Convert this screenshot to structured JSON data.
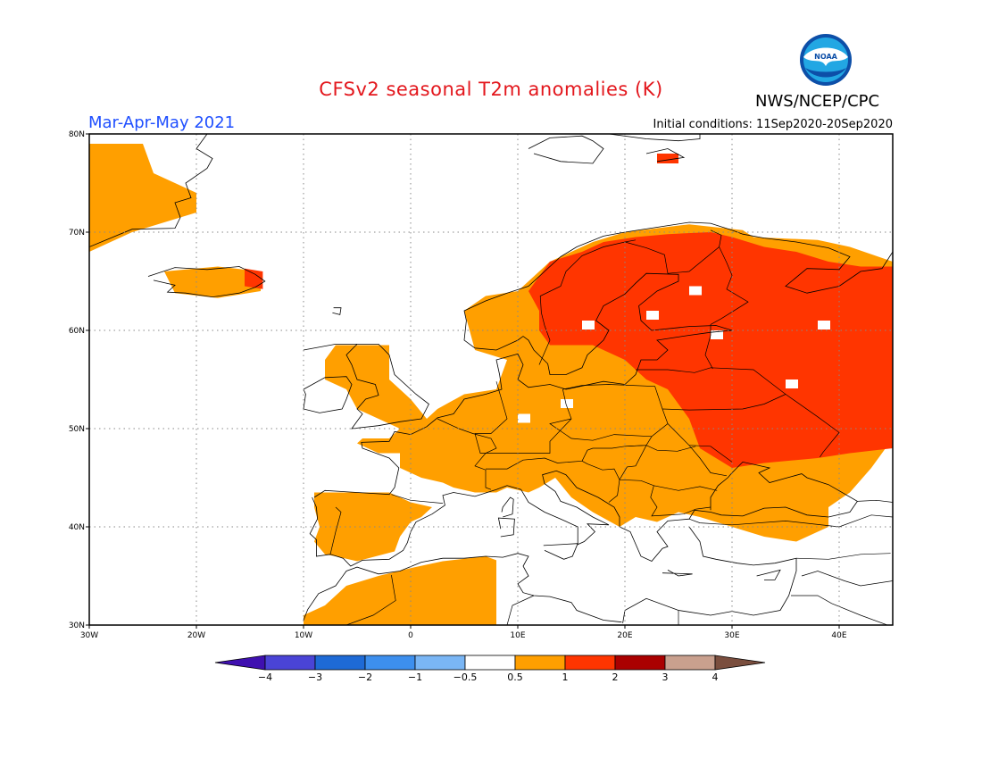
{
  "title": "CFSv2 seasonal T2m anomalies (K)",
  "season": "Mar-Apr-May 2021",
  "agency": "NWS/NCEP/CPC",
  "logo_text": "NOAA",
  "initial_conditions": "Initial conditions: 11Sep2020-20Sep2020",
  "map": {
    "lon_range": [
      -30,
      45
    ],
    "lat_range": [
      30,
      80
    ],
    "lat_ticks": [
      {
        "value": 80,
        "label": "80N"
      },
      {
        "value": 70,
        "label": "70N"
      },
      {
        "value": 60,
        "label": "60N"
      },
      {
        "value": 50,
        "label": "50N"
      },
      {
        "value": 40,
        "label": "40N"
      },
      {
        "value": 30,
        "label": "30N"
      }
    ],
    "lon_ticks": [
      {
        "value": -30,
        "label": "30W"
      },
      {
        "value": -20,
        "label": "20W"
      },
      {
        "value": -10,
        "label": "10W"
      },
      {
        "value": 0,
        "label": "0"
      },
      {
        "value": 10,
        "label": "10E"
      },
      {
        "value": 20,
        "label": "20E"
      },
      {
        "value": 30,
        "label": "30E"
      },
      {
        "value": 40,
        "label": "40E"
      }
    ],
    "grid": true,
    "anomaly_regions": [
      {
        "level": "0.5-1",
        "color": "#ff9f00",
        "polygon": [
          [
            -30,
            79
          ],
          [
            -25,
            79
          ],
          [
            -24,
            76
          ],
          [
            -20,
            74
          ],
          [
            -20,
            72
          ],
          [
            -26,
            70
          ],
          [
            -30,
            68
          ]
        ]
      },
      {
        "level": "0.5-1",
        "color": "#ff9f00",
        "polygon": [
          [
            -23,
            66
          ],
          [
            -18,
            66.5
          ],
          [
            -14,
            66
          ],
          [
            -14,
            64
          ],
          [
            -18,
            63.3
          ],
          [
            -22,
            63.8
          ]
        ]
      },
      {
        "level": "1-2",
        "color": "#ff3500",
        "polygon": [
          [
            -15.5,
            66.3
          ],
          [
            -13.8,
            66
          ],
          [
            -13.8,
            64.2
          ],
          [
            -15.5,
            64.5
          ]
        ]
      },
      {
        "level": "0.5-1",
        "color": "#ff9f00",
        "polygon": [
          [
            -7,
            58.5
          ],
          [
            -2,
            58.5
          ],
          [
            -2,
            55
          ],
          [
            0,
            53
          ],
          [
            1.5,
            51
          ],
          [
            2.5,
            52
          ],
          [
            5,
            53.5
          ],
          [
            8,
            54
          ],
          [
            9,
            57
          ],
          [
            6,
            58
          ],
          [
            5,
            62
          ],
          [
            7,
            63.5
          ],
          [
            10,
            64
          ],
          [
            13,
            67
          ],
          [
            17,
            69
          ],
          [
            20,
            70
          ],
          [
            26,
            70.8
          ],
          [
            31,
            70.2
          ],
          [
            32,
            69.5
          ],
          [
            38,
            69.2
          ],
          [
            41,
            68.5
          ],
          [
            45,
            67
          ],
          [
            45,
            49
          ],
          [
            43,
            46
          ],
          [
            41,
            43.5
          ],
          [
            39,
            42
          ],
          [
            39,
            40
          ],
          [
            36,
            38.5
          ],
          [
            33,
            39
          ],
          [
            30,
            40
          ],
          [
            27,
            41
          ],
          [
            25,
            41.5
          ],
          [
            23,
            40.5
          ],
          [
            21,
            41
          ],
          [
            19.5,
            40
          ],
          [
            17,
            41.5
          ],
          [
            15,
            43
          ],
          [
            13.5,
            45
          ],
          [
            12,
            44
          ],
          [
            11,
            43.5
          ],
          [
            9,
            44
          ],
          [
            8,
            43.5
          ],
          [
            6,
            43.5
          ],
          [
            4,
            44
          ],
          [
            3,
            44.5
          ],
          [
            1,
            45
          ],
          [
            -1,
            46
          ],
          [
            -1,
            47.5
          ],
          [
            -3,
            47.5
          ],
          [
            -5,
            48.5
          ],
          [
            -4.5,
            49
          ],
          [
            -2,
            49
          ],
          [
            -1,
            50
          ],
          [
            -3,
            51
          ],
          [
            -5,
            52
          ],
          [
            -6,
            54
          ],
          [
            -8,
            55
          ],
          [
            -8,
            57
          ]
        ]
      },
      {
        "level": "0.5-1",
        "color": "#ff9f00",
        "polygon": [
          [
            -9,
            43.5
          ],
          [
            -6,
            43.5
          ],
          [
            -2,
            43.5
          ],
          [
            0,
            42.5
          ],
          [
            2,
            42
          ],
          [
            1,
            41
          ],
          [
            0,
            40.5
          ],
          [
            -1,
            39
          ],
          [
            -1.5,
            37.5
          ],
          [
            -5,
            36.5
          ],
          [
            -7,
            37
          ],
          [
            -8,
            37.2
          ],
          [
            -9,
            38.5
          ],
          [
            -8.5,
            40
          ],
          [
            -9,
            42
          ]
        ]
      },
      {
        "level": "0.5-1",
        "color": "#ff9f00",
        "polygon": [
          [
            -10,
            31
          ],
          [
            -8,
            32
          ],
          [
            -6,
            34
          ],
          [
            -3,
            35
          ],
          [
            0,
            35.8
          ],
          [
            3,
            36.5
          ],
          [
            7,
            37
          ],
          [
            8,
            36.6
          ],
          [
            8,
            30
          ],
          [
            -10,
            30
          ]
        ]
      },
      {
        "level": "1-2",
        "color": "#ff3500",
        "polygon": [
          [
            11,
            64
          ],
          [
            13,
            67
          ],
          [
            16,
            68
          ],
          [
            18,
            69
          ],
          [
            21,
            69.5
          ],
          [
            24,
            69.8
          ],
          [
            28,
            70
          ],
          [
            30,
            69.5
          ],
          [
            33,
            68.5
          ],
          [
            36,
            68
          ],
          [
            39,
            67
          ],
          [
            42,
            66.5
          ],
          [
            45,
            66.5
          ],
          [
            45,
            48
          ],
          [
            41,
            47.5
          ],
          [
            38,
            47
          ],
          [
            33,
            46.5
          ],
          [
            30,
            46
          ],
          [
            27,
            48
          ],
          [
            26,
            51
          ],
          [
            24,
            54
          ],
          [
            22,
            55
          ],
          [
            20,
            57
          ],
          [
            17,
            58.5
          ],
          [
            13,
            58.5
          ],
          [
            12,
            60
          ],
          [
            12,
            62
          ]
        ]
      },
      {
        "level": "1-2",
        "color": "#ff3500",
        "polygon": [
          [
            23,
            78
          ],
          [
            25,
            78
          ],
          [
            25,
            77
          ],
          [
            23,
            77
          ]
        ]
      }
    ],
    "colorbar": {
      "levels": [
        "-4",
        "-3",
        "-2",
        "-1",
        "-0.5",
        "0.5",
        "1",
        "2",
        "3",
        "4"
      ],
      "colors": [
        "#3f10b0",
        "#4a44d6",
        "#1e6ad6",
        "#3d8fee",
        "#7ab6f5",
        "#ffffff",
        "#ff9f00",
        "#ff3500",
        "#aa0000",
        "#c9a08e",
        "#7a4e3e"
      ]
    }
  }
}
